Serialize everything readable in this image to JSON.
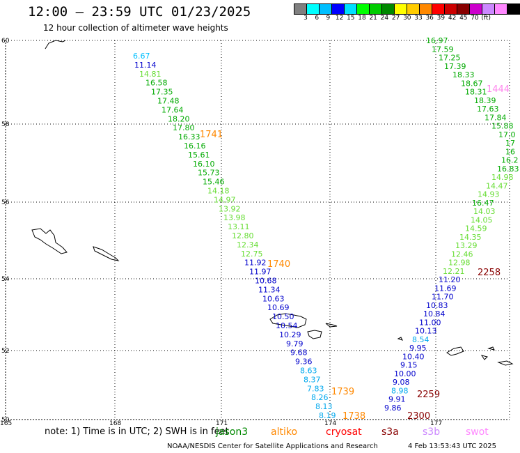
{
  "header": {
    "title": "12:00 – 23:59 UTC 01/23/2025",
    "subtitle": "12 hour collection of altimeter wave heights"
  },
  "colorbar": {
    "colors": [
      "#808080",
      "#00ffff",
      "#00bfff",
      "#0000ff",
      "#00dfff",
      "#00ff00",
      "#00cc00",
      "#008800",
      "#ffff00",
      "#ffcc00",
      "#ff8800",
      "#ff0000",
      "#cc0000",
      "#880000",
      "#cc00cc",
      "#cc88ff",
      "#ff88ff",
      "#000000"
    ],
    "labels": [
      "3",
      "6",
      "9",
      "12",
      "15",
      "18",
      "21",
      "24",
      "27",
      "30",
      "33",
      "36",
      "39",
      "42",
      "45",
      "70",
      "(ft)"
    ]
  },
  "map": {
    "lat_labels": [
      "60",
      "58",
      "56",
      "54",
      "52",
      "50"
    ],
    "lon_labels": [
      "165",
      "168",
      "171",
      "174",
      "177"
    ],
    "lon_range": [
      165,
      179
    ],
    "lat_range": [
      50,
      60
    ]
  },
  "tracks": [
    {
      "name": "track-west",
      "points": [
        {
          "v": "6.67",
          "c": "#00bfff"
        },
        {
          "v": "11.14",
          "c": "#0000cc"
        },
        {
          "v": "14.81",
          "c": "#66dd33"
        },
        {
          "v": "16.58",
          "c": "#00aa00"
        },
        {
          "v": "17.35",
          "c": "#00aa00"
        },
        {
          "v": "17.48",
          "c": "#00aa00"
        },
        {
          "v": "17.64",
          "c": "#00aa00"
        },
        {
          "v": "18.20",
          "c": "#00aa00"
        },
        {
          "v": "17.80",
          "c": "#00aa00"
        },
        {
          "v": "16.33",
          "c": "#00aa00"
        },
        {
          "v": "16.16",
          "c": "#00aa00"
        },
        {
          "v": "15.61",
          "c": "#00aa00"
        },
        {
          "v": "16.10",
          "c": "#00aa00"
        },
        {
          "v": "15.73",
          "c": "#00aa00"
        },
        {
          "v": "15.46",
          "c": "#00aa00"
        },
        {
          "v": "14.18",
          "c": "#66dd33"
        },
        {
          "v": "14.97",
          "c": "#66dd33"
        },
        {
          "v": "13.92",
          "c": "#66dd33"
        },
        {
          "v": "13.98",
          "c": "#66dd33"
        },
        {
          "v": "13.11",
          "c": "#66dd33"
        },
        {
          "v": "12.80",
          "c": "#66dd33"
        },
        {
          "v": "12.34",
          "c": "#66dd33"
        },
        {
          "v": "12.75",
          "c": "#66dd33"
        },
        {
          "v": "11.92",
          "c": "#0000cc"
        },
        {
          "v": "11.97",
          "c": "#0000cc"
        },
        {
          "v": "10.68",
          "c": "#0000cc"
        },
        {
          "v": "11.34",
          "c": "#0000cc"
        },
        {
          "v": "10.63",
          "c": "#0000cc"
        },
        {
          "v": "10.69",
          "c": "#0000cc"
        },
        {
          "v": "10.50",
          "c": "#0000cc"
        },
        {
          "v": "10.54",
          "c": "#0000cc"
        },
        {
          "v": "10.29",
          "c": "#0000cc"
        },
        {
          "v": "9.79",
          "c": "#0000cc"
        },
        {
          "v": "9.68",
          "c": "#0000cc"
        },
        {
          "v": "9.36",
          "c": "#0000cc"
        },
        {
          "v": "8.63",
          "c": "#00a8ee"
        },
        {
          "v": "8.37",
          "c": "#00a8ee"
        },
        {
          "v": "7.83",
          "c": "#00a8ee"
        },
        {
          "v": "8.26",
          "c": "#00a8ee"
        },
        {
          "v": "8.13",
          "c": "#00a8ee"
        },
        {
          "v": "8.19",
          "c": "#00a8ee"
        }
      ],
      "times": [
        {
          "t": "1741",
          "c": "#ff8800"
        },
        {
          "t": "1740",
          "c": "#ff8800"
        },
        {
          "t": "1739",
          "c": "#ff8800"
        },
        {
          "t": "1738",
          "c": "#ff8800"
        }
      ]
    },
    {
      "name": "track-east",
      "points": [
        {
          "v": "16.97",
          "c": "#00aa00"
        },
        {
          "v": "17.59",
          "c": "#00aa00"
        },
        {
          "v": "17.25",
          "c": "#00aa00"
        },
        {
          "v": "17.39",
          "c": "#00aa00"
        },
        {
          "v": "18.33",
          "c": "#00aa00"
        },
        {
          "v": "18.67",
          "c": "#00aa00"
        },
        {
          "v": "18.31",
          "c": "#00aa00"
        },
        {
          "v": "18.39",
          "c": "#00aa00"
        },
        {
          "v": "17.63",
          "c": "#00aa00"
        },
        {
          "v": "17.84",
          "c": "#00aa00"
        },
        {
          "v": "15.88",
          "c": "#00aa00"
        },
        {
          "v": "17.0",
          "c": "#00aa00"
        },
        {
          "v": "17",
          "c": "#00aa00"
        },
        {
          "v": "16",
          "c": "#00aa00"
        },
        {
          "v": "16.2",
          "c": "#00aa00"
        },
        {
          "v": "16.83",
          "c": "#00aa00"
        },
        {
          "v": "14.98",
          "c": "#66dd33"
        },
        {
          "v": "14.47",
          "c": "#66dd33"
        },
        {
          "v": "14.93",
          "c": "#66dd33"
        },
        {
          "v": "16.47",
          "c": "#00aa00"
        },
        {
          "v": "14.03",
          "c": "#66dd33"
        },
        {
          "v": "14.05",
          "c": "#66dd33"
        },
        {
          "v": "14.59",
          "c": "#66dd33"
        },
        {
          "v": "14.35",
          "c": "#66dd33"
        },
        {
          "v": "13.29",
          "c": "#66dd33"
        },
        {
          "v": "12.46",
          "c": "#66dd33"
        },
        {
          "v": "12.98",
          "c": "#66dd33"
        },
        {
          "v": "12.21",
          "c": "#66dd33"
        },
        {
          "v": "11.20",
          "c": "#0000cc"
        },
        {
          "v": "11.69",
          "c": "#0000cc"
        },
        {
          "v": "11.70",
          "c": "#0000cc"
        },
        {
          "v": "10.83",
          "c": "#0000cc"
        },
        {
          "v": "10.84",
          "c": "#0000cc"
        },
        {
          "v": "11.00",
          "c": "#0000cc"
        },
        {
          "v": "10.13",
          "c": "#0000cc"
        },
        {
          "v": "8.54",
          "c": "#00a8ee"
        },
        {
          "v": "9.95",
          "c": "#0000cc"
        },
        {
          "v": "10.40",
          "c": "#0000cc"
        },
        {
          "v": "9.15",
          "c": "#0000cc"
        },
        {
          "v": "10.00",
          "c": "#0000cc"
        },
        {
          "v": "9.08",
          "c": "#0000cc"
        },
        {
          "v": "8.98",
          "c": "#00a8ee"
        },
        {
          "v": "9.91",
          "c": "#0000cc"
        },
        {
          "v": "9.86",
          "c": "#0000cc"
        }
      ],
      "times": [
        {
          "t": "1444",
          "c": "#ff88ee"
        },
        {
          "t": "2258",
          "c": "#880000"
        },
        {
          "t": "2259",
          "c": "#880000"
        },
        {
          "t": "2300",
          "c": "#880000"
        }
      ]
    }
  ],
  "notes": "note:  1) Time is in UTC;  2) SWH is in feet",
  "legend": [
    {
      "label": "jason3",
      "c": "#008800"
    },
    {
      "label": "altiko",
      "c": "#ff8800"
    },
    {
      "label": "cryosat",
      "c": "#ff0000"
    },
    {
      "label": "s3a",
      "c": "#880000"
    },
    {
      "label": "s3b",
      "c": "#cc88ff"
    },
    {
      "label": "swot",
      "c": "#ff88ff"
    }
  ],
  "footer": {
    "credit": "NOAA/NESDIS Center for Satellite Applications and Research",
    "timestamp": "4 Feb 13:53:43 UTC 2025"
  }
}
